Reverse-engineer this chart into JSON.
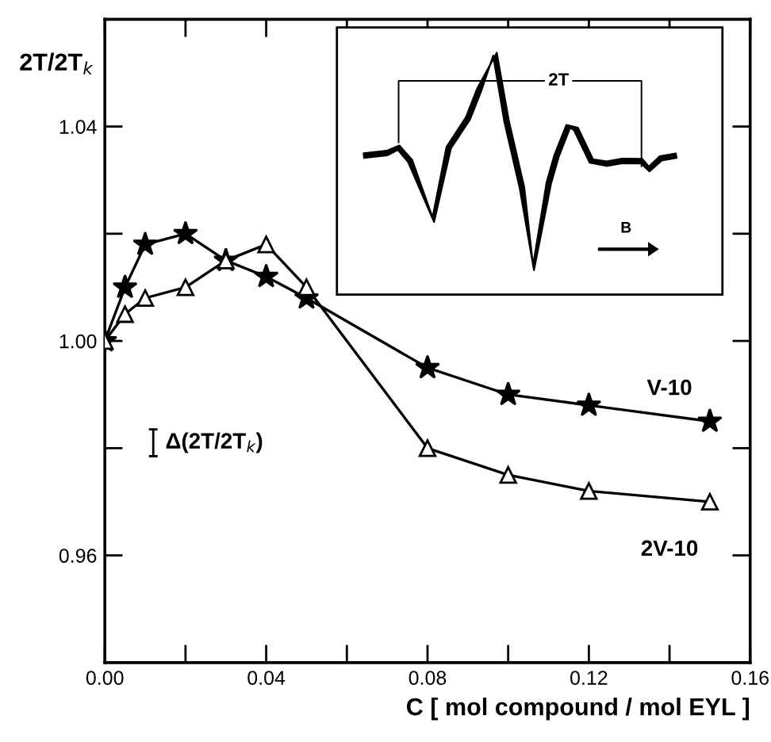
{
  "chart_data": {
    "type": "line",
    "ylabel": "2T/2T$_{k}$",
    "xlabel": "C [ mol compound / mol EYL ]",
    "x": [
      0,
      0.005,
      0.01,
      0.02,
      0.03,
      0.04,
      0.05,
      0.08,
      0.1,
      0.12,
      0.15
    ],
    "series": [
      {
        "name": "V-10",
        "color": "#000000",
        "marker": "star",
        "values": [
          1.0,
          1.01,
          1.018,
          1.02,
          1.015,
          1.012,
          1.008,
          0.995,
          0.99,
          0.988,
          0.985
        ]
      },
      {
        "name": "2V-10",
        "color": "#000000",
        "marker": "triangle",
        "values": [
          1.0,
          1.005,
          1.008,
          1.01,
          1.015,
          1.018,
          1.01,
          0.98,
          0.975,
          0.972,
          0.97
        ]
      }
    ],
    "xlim": [
      0,
      0.16
    ],
    "ylim": [
      0.94,
      1.06
    ],
    "xticks": [
      {
        "value": 0,
        "label": "0.00"
      },
      {
        "value": 0.02,
        "label": null
      },
      {
        "value": 0.04,
        "label": "0.04"
      },
      {
        "value": 0.06,
        "label": null
      },
      {
        "value": 0.08,
        "label": "0.08"
      },
      {
        "value": 0.1,
        "label": null
      },
      {
        "value": 0.12,
        "label": "0.12"
      },
      {
        "value": 0.14,
        "label": null
      },
      {
        "value": 0.16,
        "label": "0.16"
      }
    ],
    "yticks": [
      {
        "value": 0.96,
        "label": "0.96"
      },
      {
        "value": 0.98,
        "label": null
      },
      {
        "value": 1.0,
        "label": "1.00"
      },
      {
        "value": 1.02,
        "label": null
      },
      {
        "value": 1.04,
        "label": "1.04"
      }
    ],
    "annotations": [
      "Δ(2T/2T$_{k}$)",
      "2T",
      "B"
    ],
    "grid": false,
    "line_style": "solid"
  }
}
